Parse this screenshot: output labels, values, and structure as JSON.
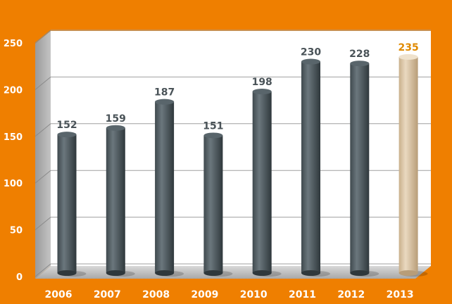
{
  "chart_data": {
    "type": "bar",
    "title": "",
    "xlabel": "",
    "ylabel": "",
    "categories": [
      "2006",
      "2007",
      "2008",
      "2009",
      "2010",
      "2011",
      "2012",
      "2013"
    ],
    "values": [
      152,
      159,
      187,
      151,
      198,
      230,
      228,
      235
    ],
    "value_labels": [
      "152",
      "159",
      "187",
      "151",
      "198",
      "230",
      "228",
      "235"
    ],
    "ylim": [
      0,
      250
    ],
    "yticks": [
      "0",
      "50",
      "100",
      "150",
      "200",
      "250"
    ],
    "grid": true,
    "legend": "none",
    "colors": {
      "background": "#ef7f00",
      "bar": "#4f5c63",
      "highlight_bar": "#d6c2a4",
      "label": "#4a5358",
      "highlight_label": "#e08a00",
      "axis_text": "#ffffff"
    }
  }
}
